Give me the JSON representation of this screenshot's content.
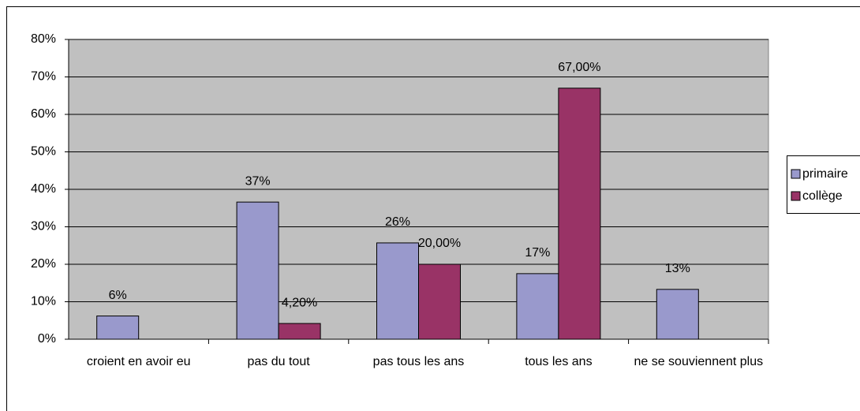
{
  "chart_data": {
    "type": "bar",
    "categories": [
      "croient en avoir eu",
      "pas du tout",
      "pas tous les ans",
      "tous les ans",
      "ne se souviennent plus"
    ],
    "series": [
      {
        "name": "primaire",
        "color": "#9999cc",
        "values": [
          6.2,
          36.6,
          25.7,
          17.5,
          13.3
        ],
        "value_labels": [
          "6%",
          "37%",
          "26%",
          "17%",
          "13%"
        ]
      },
      {
        "name": "collège",
        "color": "#993366",
        "values": [
          null,
          4.2,
          20,
          67,
          null
        ],
        "value_labels": [
          null,
          "4,20%",
          "20,00%",
          "67,00%",
          null
        ]
      }
    ],
    "ylim": [
      0,
      80
    ],
    "yticks": [
      {
        "value": 0,
        "label": "0%"
      },
      {
        "value": 10,
        "label": "10%"
      },
      {
        "value": 20,
        "label": "20%"
      },
      {
        "value": 30,
        "label": "30%"
      },
      {
        "value": 40,
        "label": "40%"
      },
      {
        "value": 50,
        "label": "50%"
      },
      {
        "value": 60,
        "label": "60%"
      },
      {
        "value": 70,
        "label": "70%"
      },
      {
        "value": 80,
        "label": "80%"
      }
    ],
    "grid": true,
    "legend": "right",
    "background": "#c0c0c0"
  }
}
